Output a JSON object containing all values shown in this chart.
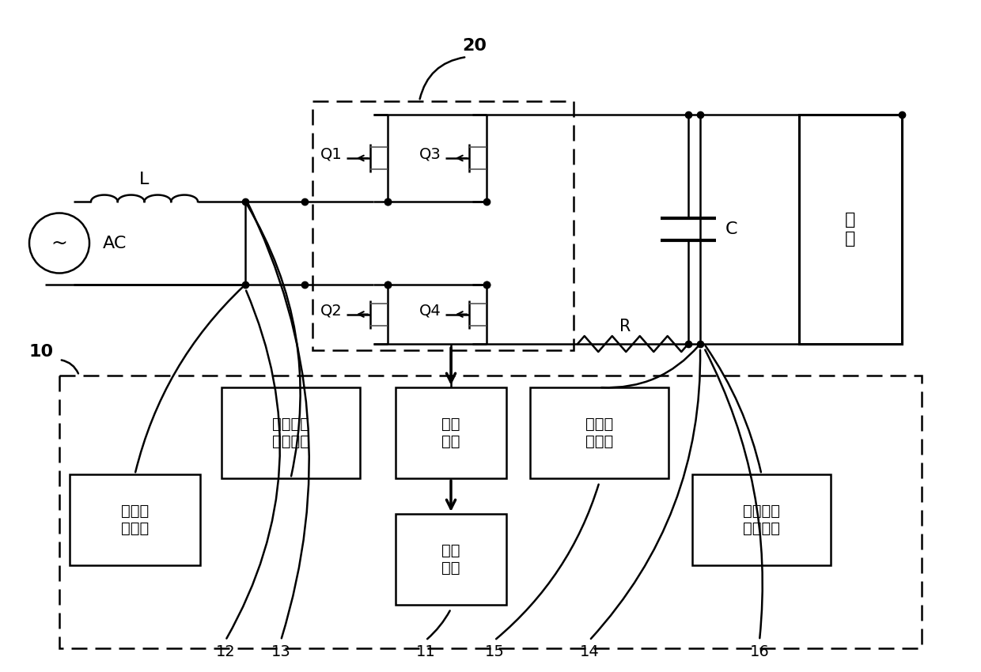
{
  "bg_color": "#ffffff",
  "line_color": "#000000",
  "fig_width": 12.4,
  "fig_height": 8.5,
  "label_20": "20",
  "label_10": "10",
  "label_L": "L",
  "label_AC": "AC",
  "label_Q1": "Q1",
  "label_Q2": "Q2",
  "label_Q3": "Q3",
  "label_Q4": "Q4",
  "label_C": "C",
  "label_R": "R",
  "label_load": "负\n载",
  "label_ac_detect": "交流电压\n检测单元",
  "label_drive": "驱动\n单元",
  "label_drive_protect": "驱动保\n护单元",
  "label_control": "控制\n单元",
  "label_current": "电流检\n测单元",
  "label_bus": "母线电压\n检测单元",
  "num_12": "12",
  "num_13": "13",
  "num_11": "11",
  "num_15": "15",
  "num_14": "14",
  "num_16": "16"
}
